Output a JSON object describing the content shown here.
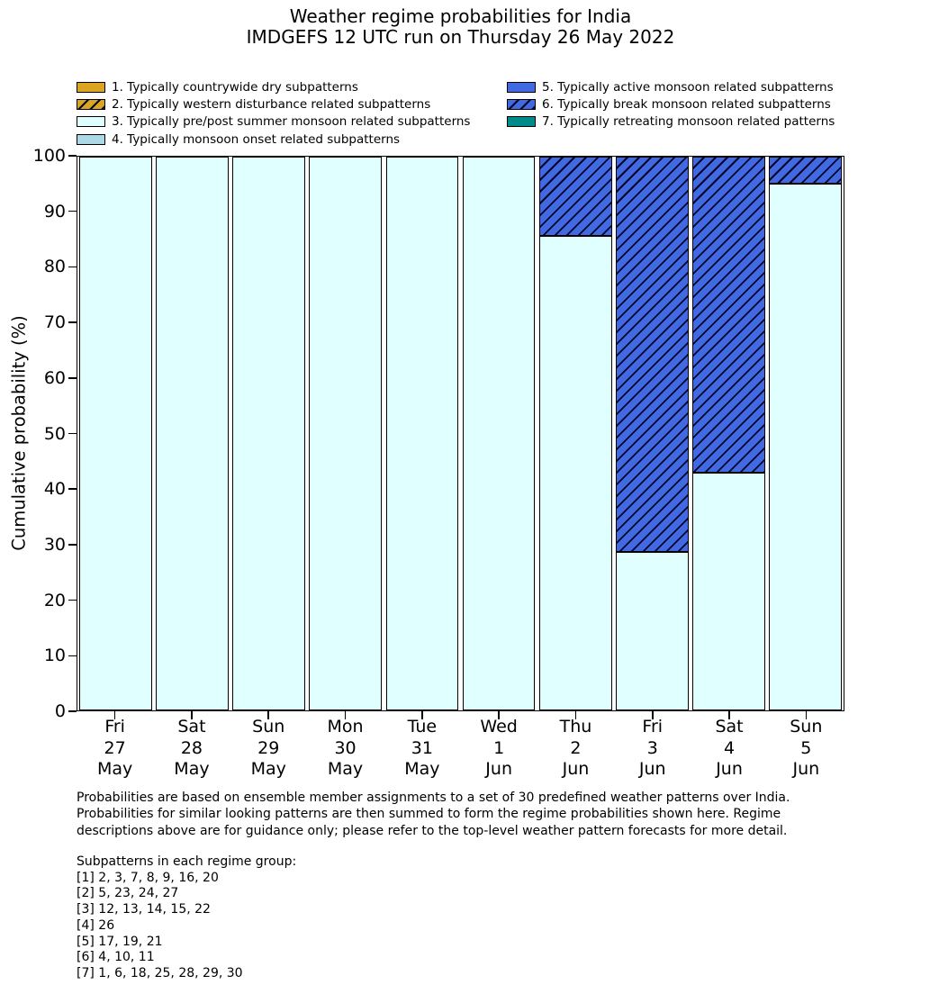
{
  "title": {
    "line1": "Weather regime probabilities for India",
    "line2": "IMDGEFS 12 UTC run on Thursday 26 May 2022"
  },
  "legend": {
    "items": [
      {
        "label": "1. Typically countrywide dry subpatterns",
        "color": "#DAA520",
        "hatch": false,
        "column": "left"
      },
      {
        "label": "2. Typically western disturbance related subpatterns",
        "color": "#DAA520",
        "hatch": true,
        "column": "left"
      },
      {
        "label": "3. Typically pre/post summer monsoon related subpatterns",
        "color": "#E0FFFF",
        "hatch": false,
        "column": "left"
      },
      {
        "label": "4. Typically monsoon onset related subpatterns",
        "color": "#ADD8E6",
        "hatch": false,
        "column": "left"
      },
      {
        "label": "5. Typically active monsoon related subpatterns",
        "color": "#4169E1",
        "hatch": false,
        "column": "right"
      },
      {
        "label": "6. Typically break monsoon related subpatterns",
        "color": "#4169E1",
        "hatch": true,
        "column": "right"
      },
      {
        "label": "7. Typically retreating monsoon related patterns",
        "color": "#008B8B",
        "hatch": false,
        "column": "right"
      }
    ]
  },
  "chart_data": {
    "type": "bar",
    "stacked": true,
    "title": "Weather regime probabilities for India — IMDGEFS 12 UTC run on Thursday 26 May 2022",
    "ylabel": "Cumulative probability (%)",
    "ylim": [
      0,
      100
    ],
    "yticks": [
      0,
      10,
      20,
      30,
      40,
      50,
      60,
      70,
      80,
      90,
      100
    ],
    "grid": false,
    "legend_position": "top, two columns, no frame",
    "categories": [
      [
        "Fri",
        "27",
        "May"
      ],
      [
        "Sat",
        "28",
        "May"
      ],
      [
        "Sun",
        "29",
        "May"
      ],
      [
        "Mon",
        "30",
        "May"
      ],
      [
        "Tue",
        "31",
        "May"
      ],
      [
        "Wed",
        "1",
        "Jun"
      ],
      [
        "Thu",
        "2",
        "Jun"
      ],
      [
        "Fri",
        "3",
        "Jun"
      ],
      [
        "Sat",
        "4",
        "Jun"
      ],
      [
        "Sun",
        "5",
        "Jun"
      ]
    ],
    "series": [
      {
        "name": "3. Typically pre/post summer monsoon related subpatterns",
        "color": "#E0FFFF",
        "hatch": false,
        "values": [
          100,
          100,
          100,
          100,
          100,
          100,
          85.7,
          28.6,
          42.9,
          95.2
        ]
      },
      {
        "name": "6. Typically break monsoon related subpatterns",
        "color": "#4169E1",
        "hatch": true,
        "values": [
          0,
          0,
          0,
          0,
          0,
          0,
          14.3,
          71.4,
          57.1,
          4.8
        ]
      }
    ]
  },
  "footer": {
    "note_lines": [
      "Probabilities are based on ensemble member assignments to a set of 30 predefined weather patterns over India.",
      "Probabilities for similar looking patterns are then summed to form the regime probabilities shown here. Regime",
      "descriptions above are for guidance only; please refer to the top-level weather pattern forecasts for more detail."
    ],
    "subpatterns_header": "Subpatterns in each regime group:",
    "subpatterns_lines": [
      "[1] 2, 3, 7, 8, 9, 16, 20",
      "[2] 5, 23, 24, 27",
      "[3] 12, 13, 14, 15, 22",
      "[4] 26",
      "[5] 17, 19, 21",
      "[6] 4, 10, 11",
      "[7] 1, 6, 18, 25, 28, 29, 30"
    ]
  }
}
